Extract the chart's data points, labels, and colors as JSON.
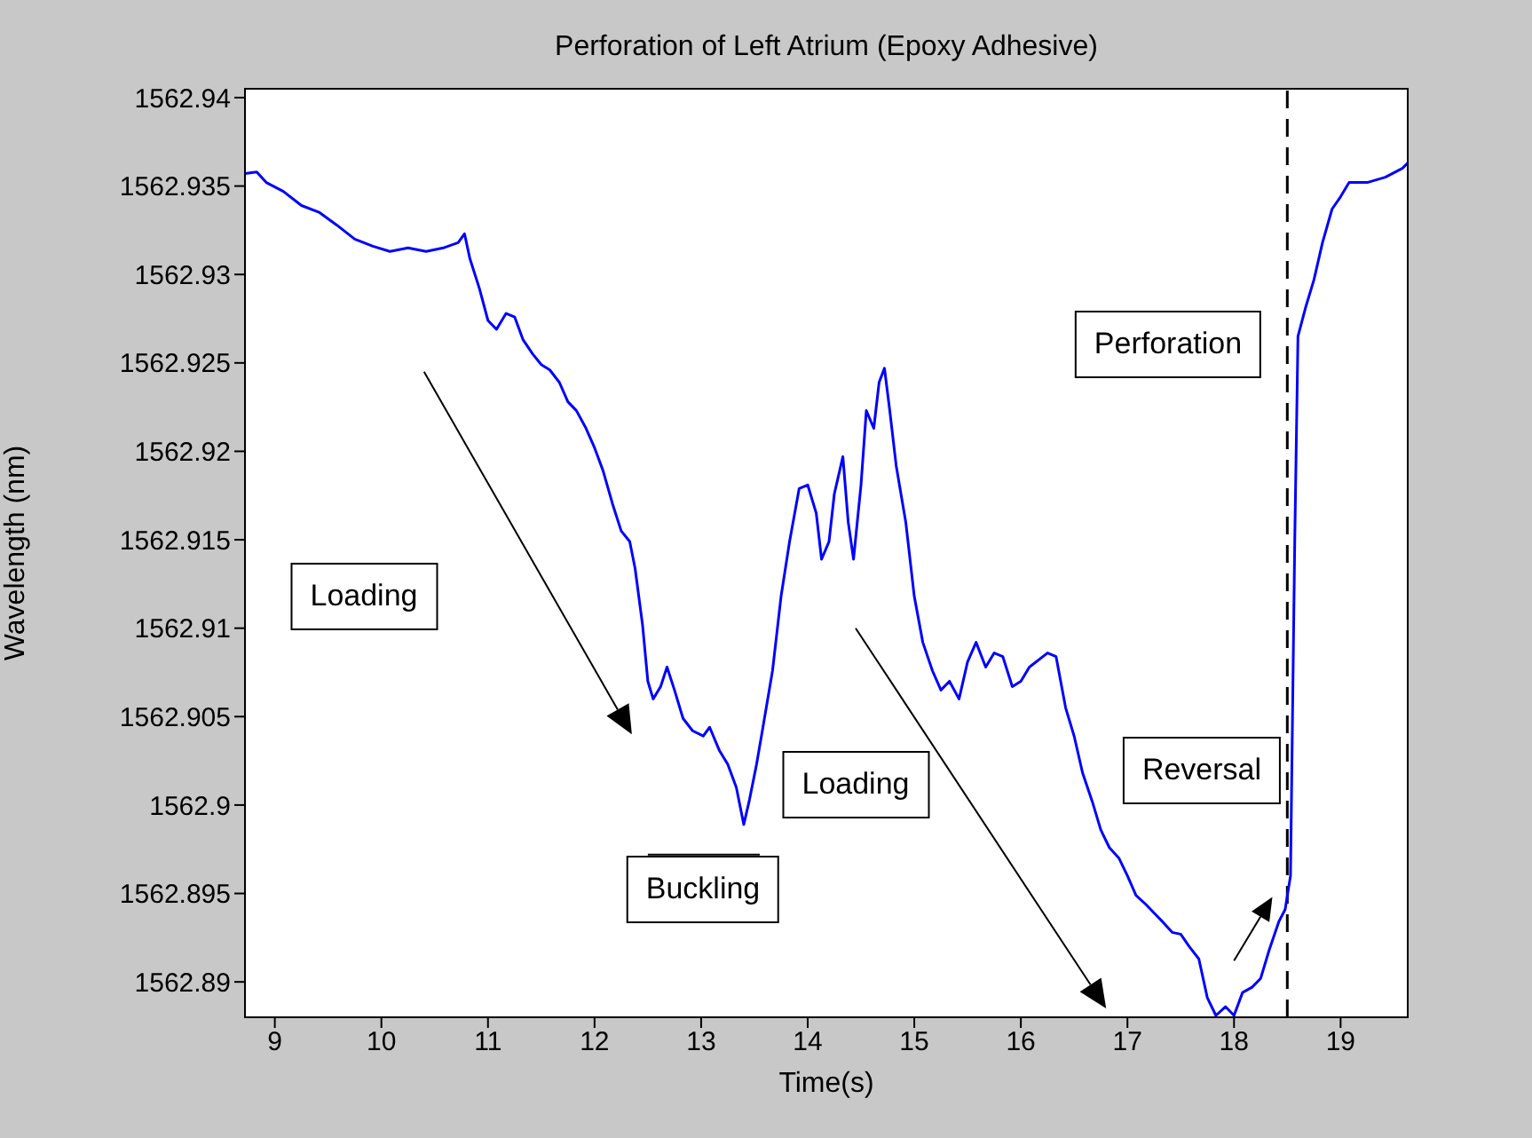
{
  "chart_data": {
    "type": "line",
    "title": "Perforation of Left Atrium (Epoxy Adhesive)",
    "xlabel": "Time(s)",
    "ylabel": "Wavelength (nm)",
    "x": [
      8.72,
      8.83,
      8.92,
      9.08,
      9.25,
      9.42,
      9.58,
      9.75,
      9.92,
      10.08,
      10.25,
      10.42,
      10.58,
      10.72,
      10.78,
      10.83,
      10.92,
      11.0,
      11.08,
      11.17,
      11.25,
      11.33,
      11.42,
      11.5,
      11.58,
      11.67,
      11.75,
      11.83,
      11.92,
      12.0,
      12.08,
      12.17,
      12.25,
      12.33,
      12.38,
      12.45,
      12.5,
      12.55,
      12.62,
      12.68,
      12.75,
      12.83,
      12.92,
      13.02,
      13.08,
      13.17,
      13.25,
      13.33,
      13.4,
      13.45,
      13.52,
      13.58,
      13.67,
      13.75,
      13.83,
      13.92,
      14.0,
      14.08,
      14.13,
      14.2,
      14.25,
      14.33,
      14.38,
      14.43,
      14.5,
      14.55,
      14.62,
      14.67,
      14.72,
      14.77,
      14.83,
      14.92,
      15.0,
      15.08,
      15.17,
      15.25,
      15.33,
      15.42,
      15.5,
      15.58,
      15.67,
      15.75,
      15.83,
      15.92,
      16.0,
      16.08,
      16.25,
      16.33,
      16.42,
      16.5,
      16.58,
      16.67,
      16.75,
      16.83,
      16.92,
      17.0,
      17.08,
      17.17,
      17.25,
      17.33,
      17.42,
      17.5,
      17.58,
      17.67,
      17.75,
      17.83,
      17.92,
      18.0,
      18.08,
      18.17,
      18.25,
      18.33,
      18.42,
      18.48,
      18.53,
      18.57,
      18.6,
      18.67,
      18.75,
      18.83,
      18.92,
      19.0,
      19.08,
      19.25,
      19.42,
      19.58,
      19.63
    ],
    "series": [
      {
        "color": "#0000ff",
        "values": [
          1562.9357,
          1562.9358,
          1562.9352,
          1562.9347,
          1562.9339,
          1562.9335,
          1562.9328,
          1562.932,
          1562.9316,
          1562.9313,
          1562.9315,
          1562.9313,
          1562.9315,
          1562.9318,
          1562.9323,
          1562.9309,
          1562.9292,
          1562.9274,
          1562.9269,
          1562.9278,
          1562.9276,
          1562.9263,
          1562.9255,
          1562.9249,
          1562.9246,
          1562.9239,
          1562.9228,
          1562.9223,
          1562.9213,
          1562.9202,
          1562.9189,
          1562.917,
          1562.9155,
          1562.9149,
          1562.9134,
          1562.9102,
          1562.907,
          1562.906,
          1562.9067,
          1562.9078,
          1562.9065,
          1562.9049,
          1562.9042,
          1562.9039,
          1562.9044,
          1562.9031,
          1562.9023,
          1562.901,
          1562.8989,
          1562.9002,
          1562.9023,
          1562.9044,
          1562.9076,
          1562.9118,
          1562.9149,
          1562.9179,
          1562.9181,
          1562.9165,
          1562.9139,
          1562.9149,
          1562.9176,
          1562.9197,
          1562.916,
          1562.9139,
          1562.9181,
          1562.9223,
          1562.9213,
          1562.9239,
          1562.9247,
          1562.9223,
          1562.9192,
          1562.916,
          1562.9118,
          1562.9092,
          1562.9076,
          1562.9065,
          1562.907,
          1562.906,
          1562.9081,
          1562.9092,
          1562.9078,
          1562.9086,
          1562.9084,
          1562.9067,
          1562.907,
          1562.9078,
          1562.9086,
          1562.9084,
          1562.9055,
          1562.9039,
          1562.9018,
          1562.9002,
          1562.8986,
          1562.8976,
          1562.897,
          1562.896,
          1562.8949,
          1562.8944,
          1562.8939,
          1562.8934,
          1562.8928,
          1562.8927,
          1562.892,
          1562.8913,
          1562.8891,
          1562.8881,
          1562.8886,
          1562.8881,
          1562.8894,
          1562.8897,
          1562.8902,
          1562.8918,
          1562.8934,
          1562.8941,
          1562.896,
          1562.915,
          1562.9265,
          1562.9281,
          1562.9297,
          1562.9318,
          1562.9337,
          1562.9344,
          1562.9352,
          1562.9352,
          1562.9355,
          1562.936,
          1562.9363
        ]
      }
    ],
    "xlim": [
      8.72,
      19.63
    ],
    "xticks": [
      9,
      10,
      11,
      12,
      13,
      14,
      15,
      16,
      17,
      18,
      19
    ],
    "ylim": [
      1562.888,
      1562.9405
    ],
    "yticks": [
      1562.89,
      1562.895,
      1562.9,
      1562.905,
      1562.91,
      1562.915,
      1562.92,
      1562.925,
      1562.93,
      1562.935,
      1562.94
    ],
    "grid": false,
    "legend": false,
    "marker": "none",
    "line_style": "solid",
    "ref_lines": [
      {
        "axis": "x",
        "value": 18.5,
        "color": "#000000",
        "line_style": "dashed"
      }
    ],
    "annotations": [
      "Loading",
      "Buckling",
      "Loading",
      "Reversal",
      "Perforation"
    ]
  }
}
